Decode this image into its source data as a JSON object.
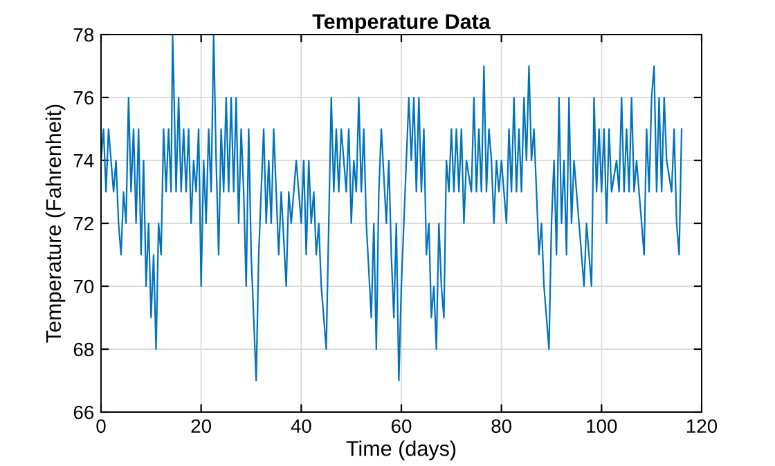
{
  "chart_data": {
    "type": "line",
    "title": "Temperature Data",
    "xlabel": "Time (days)",
    "ylabel": "Temperature (Fahrenheit)",
    "xlim": [
      0,
      120
    ],
    "xticks": [
      0,
      20,
      40,
      60,
      80,
      100,
      120
    ],
    "ylim": [
      66,
      78
    ],
    "yticks": [
      66,
      68,
      70,
      72,
      74,
      76,
      78
    ],
    "grid": true,
    "marker": "none",
    "line_style": "solid",
    "series": [
      {
        "color": "#0072bd",
        "x": [
          0,
          0.5,
          1,
          1.5,
          2,
          2.5,
          3,
          3.5,
          4,
          4.5,
          5,
          5.5,
          6,
          6.5,
          7,
          7.5,
          8,
          8.5,
          9,
          9.5,
          10,
          10.5,
          11,
          11.5,
          12,
          12.5,
          13,
          13.5,
          14,
          14.3,
          14.6,
          15,
          15.5,
          16,
          16.5,
          17,
          17.5,
          18,
          18.5,
          19,
          19.5,
          20,
          20.5,
          21,
          21.5,
          22,
          22.5,
          23,
          23.5,
          24,
          24.5,
          25,
          25.5,
          26,
          26.5,
          27,
          27.5,
          28,
          28.5,
          29,
          29.5,
          30,
          30.5,
          31,
          31.5,
          32,
          32.5,
          33,
          33.5,
          34,
          34.5,
          35,
          35.5,
          36,
          37,
          37.5,
          38,
          39,
          40,
          40.5,
          41,
          41.5,
          42,
          42.5,
          43,
          43.5,
          44,
          45,
          45.5,
          46,
          46.5,
          47,
          47.5,
          48,
          49,
          49.5,
          50,
          50.5,
          51,
          51.5,
          52,
          52.5,
          53,
          54,
          54.5,
          55,
          55.5,
          56,
          57,
          57.5,
          58,
          58.5,
          59,
          59.5,
          60,
          61,
          61.5,
          62,
          62.5,
          63,
          63.5,
          64,
          64.5,
          65,
          65.5,
          66,
          66.5,
          67,
          67.5,
          68,
          68.5,
          69,
          69.5,
          70,
          70.5,
          71,
          71.5,
          72,
          72.5,
          73,
          74,
          74.5,
          75,
          75.5,
          76,
          76.5,
          77,
          77.5,
          78,
          78.5,
          79,
          79.5,
          80,
          81,
          81.5,
          82,
          82.5,
          83,
          83.5,
          84,
          84.5,
          85,
          85.5,
          86,
          86.5,
          87,
          87.5,
          88,
          88.5,
          89,
          89.5,
          90,
          90.5,
          91,
          91.5,
          92,
          92.5,
          93,
          93.5,
          94,
          94.5,
          95,
          95.5,
          96,
          96.5,
          97,
          97.5,
          98,
          98.5,
          99,
          99.5,
          100,
          100.5,
          101,
          101.5,
          102,
          103,
          103.5,
          104,
          104.5,
          105,
          105.5,
          106,
          106.5,
          107,
          107.5,
          108,
          108.5,
          109,
          109.5,
          110,
          110.5,
          111,
          111.5,
          112,
          112.5,
          113,
          114,
          114.5,
          115,
          115.5,
          116
        ],
        "values": [
          74,
          75,
          73,
          75,
          74,
          73,
          74,
          72,
          71,
          73,
          72,
          76,
          73,
          75,
          72,
          75,
          71,
          74,
          70,
          72,
          69,
          71,
          68,
          72,
          71,
          75,
          73,
          75,
          73,
          78,
          76,
          73,
          76,
          73,
          75,
          73,
          75,
          72,
          74,
          73,
          75,
          70,
          74,
          72,
          75,
          73,
          78,
          74,
          71,
          75,
          73,
          76,
          73,
          76,
          73,
          76,
          72,
          75,
          73,
          70,
          75,
          71,
          69,
          67,
          71,
          73,
          75,
          72,
          74,
          72,
          75,
          73,
          71,
          73,
          70,
          73,
          72,
          74,
          72,
          74,
          71,
          74,
          72,
          73,
          71,
          72,
          70,
          68,
          72,
          76,
          73,
          75,
          73,
          75,
          73,
          75,
          72,
          74,
          73,
          76,
          73,
          75,
          72,
          69,
          72,
          68,
          73,
          75,
          72,
          74,
          71,
          69,
          72,
          67,
          70,
          74,
          76,
          74,
          76,
          73,
          76,
          73,
          75,
          71,
          72,
          69,
          70,
          68,
          72,
          70,
          69,
          74,
          73,
          75,
          73,
          75,
          73,
          75,
          72,
          74,
          73,
          76,
          73,
          75,
          73,
          77,
          73,
          75,
          74,
          72,
          74,
          73,
          74,
          72,
          75,
          73,
          76,
          73,
          75,
          73,
          76,
          74,
          77,
          74,
          75,
          73,
          71,
          72,
          70,
          69,
          68,
          72,
          74,
          71,
          76,
          72,
          74,
          71,
          76,
          72,
          74,
          73,
          72,
          71,
          70,
          72,
          71,
          70,
          76,
          73,
          75,
          73,
          75,
          72,
          75,
          73,
          74,
          73,
          76,
          73,
          75,
          73,
          76,
          73,
          74,
          73,
          72,
          71,
          75,
          73,
          76,
          77,
          73,
          76,
          73,
          76,
          74,
          73,
          75,
          72,
          71,
          75
        ]
      }
    ]
  }
}
